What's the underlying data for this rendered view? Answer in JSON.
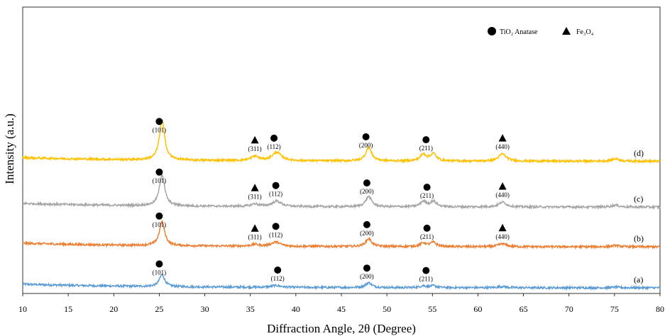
{
  "chart_data": {
    "type": "line",
    "title": "",
    "xlabel": "Diffraction Angle, 2θ (Degree)",
    "ylabel": "Intensity (a.u.)",
    "xlim": [
      10,
      80
    ],
    "xticks": [
      10,
      15,
      20,
      25,
      30,
      35,
      40,
      45,
      50,
      55,
      60,
      65,
      70,
      75,
      80
    ],
    "grid": false,
    "legend_position": "top-right",
    "legend": [
      {
        "marker": "circle",
        "label": "TiO₂ Anatase"
      },
      {
        "marker": "triangle",
        "label": "Fe₃O₄"
      }
    ],
    "series": [
      {
        "label": "(a)",
        "color": "#5b9bd5",
        "baseline": 0.0,
        "peaks": [
          {
            "x": 25.3,
            "h": 0.2,
            "w": 0.35
          },
          {
            "x": 37.8,
            "h": 0.03,
            "w": 0.6
          },
          {
            "x": 48.0,
            "h": 0.08,
            "w": 0.4
          },
          {
            "x": 54.0,
            "h": 0.03,
            "w": 0.4
          },
          {
            "x": 55.1,
            "h": 0.03,
            "w": 0.4
          },
          {
            "x": 62.7,
            "h": 0.02,
            "w": 0.5
          },
          {
            "x": 75.1,
            "h": 0.01,
            "w": 0.5
          }
        ]
      },
      {
        "label": "(b)",
        "color": "#ed7d31",
        "baseline": 0.68,
        "peaks": [
          {
            "x": 25.3,
            "h": 0.4,
            "w": 0.35
          },
          {
            "x": 35.5,
            "h": 0.03,
            "w": 0.5
          },
          {
            "x": 37.8,
            "h": 0.07,
            "w": 0.6
          },
          {
            "x": 48.0,
            "h": 0.13,
            "w": 0.4
          },
          {
            "x": 54.0,
            "h": 0.06,
            "w": 0.4
          },
          {
            "x": 55.1,
            "h": 0.07,
            "w": 0.4
          },
          {
            "x": 62.7,
            "h": 0.05,
            "w": 0.5
          },
          {
            "x": 75.1,
            "h": 0.02,
            "w": 0.5
          }
        ]
      },
      {
        "label": "(c)",
        "color": "#a5a5a5",
        "baseline": 1.34,
        "peaks": [
          {
            "x": 25.3,
            "h": 0.52,
            "w": 0.35
          },
          {
            "x": 35.5,
            "h": 0.04,
            "w": 0.5
          },
          {
            "x": 37.9,
            "h": 0.09,
            "w": 0.6
          },
          {
            "x": 48.0,
            "h": 0.17,
            "w": 0.4
          },
          {
            "x": 54.0,
            "h": 0.09,
            "w": 0.4
          },
          {
            "x": 55.1,
            "h": 0.09,
            "w": 0.4
          },
          {
            "x": 62.7,
            "h": 0.08,
            "w": 0.5
          },
          {
            "x": 75.1,
            "h": 0.03,
            "w": 0.5
          }
        ]
      },
      {
        "label": "(d)",
        "color": "#ffc000",
        "baseline": 2.1,
        "peaks": [
          {
            "x": 25.3,
            "h": 0.66,
            "w": 0.35
          },
          {
            "x": 35.5,
            "h": 0.07,
            "w": 0.5
          },
          {
            "x": 37.9,
            "h": 0.14,
            "w": 0.6
          },
          {
            "x": 48.0,
            "h": 0.22,
            "w": 0.4
          },
          {
            "x": 54.0,
            "h": 0.11,
            "w": 0.4
          },
          {
            "x": 55.1,
            "h": 0.12,
            "w": 0.4
          },
          {
            "x": 62.7,
            "h": 0.12,
            "w": 0.5
          },
          {
            "x": 75.1,
            "h": 0.04,
            "w": 0.5
          }
        ]
      }
    ],
    "annotations": [
      {
        "series": 0,
        "x": 25.0,
        "hkl": "(101)",
        "marker": "circle"
      },
      {
        "series": 0,
        "x": 38.0,
        "hkl": "(112)",
        "marker": "circle"
      },
      {
        "series": 0,
        "x": 47.8,
        "hkl": "(200)",
        "marker": "circle"
      },
      {
        "series": 0,
        "x": 54.3,
        "hkl": "(211)",
        "marker": "circle"
      },
      {
        "series": 1,
        "x": 25.0,
        "hkl": "(101)",
        "marker": "circle"
      },
      {
        "series": 1,
        "x": 35.5,
        "hkl": "(311)",
        "marker": "triangle"
      },
      {
        "series": 1,
        "x": 37.8,
        "hkl": "(112)",
        "marker": "circle"
      },
      {
        "series": 1,
        "x": 47.8,
        "hkl": "(200)",
        "marker": "circle"
      },
      {
        "series": 1,
        "x": 54.4,
        "hkl": "(211)",
        "marker": "circle"
      },
      {
        "series": 1,
        "x": 62.7,
        "hkl": "(440)",
        "marker": "triangle"
      },
      {
        "series": 2,
        "x": 25.0,
        "hkl": "(101)",
        "marker": "circle"
      },
      {
        "series": 2,
        "x": 35.5,
        "hkl": "(311)",
        "marker": "triangle"
      },
      {
        "series": 2,
        "x": 37.8,
        "hkl": "(112)",
        "marker": "circle"
      },
      {
        "series": 2,
        "x": 47.8,
        "hkl": "(200)",
        "marker": "circle"
      },
      {
        "series": 2,
        "x": 54.4,
        "hkl": "(211)",
        "marker": "circle"
      },
      {
        "series": 2,
        "x": 62.7,
        "hkl": "(440)",
        "marker": "triangle"
      },
      {
        "series": 3,
        "x": 25.0,
        "hkl": "(101)",
        "marker": "circle"
      },
      {
        "series": 3,
        "x": 35.5,
        "hkl": "(311)",
        "marker": "triangle"
      },
      {
        "series": 3,
        "x": 37.6,
        "hkl": "(112)",
        "marker": "circle"
      },
      {
        "series": 3,
        "x": 47.7,
        "hkl": "(200)",
        "marker": "circle"
      },
      {
        "series": 3,
        "x": 54.3,
        "hkl": "(211)",
        "marker": "circle"
      },
      {
        "series": 3,
        "x": 62.7,
        "hkl": "(440)",
        "marker": "triangle"
      }
    ]
  }
}
